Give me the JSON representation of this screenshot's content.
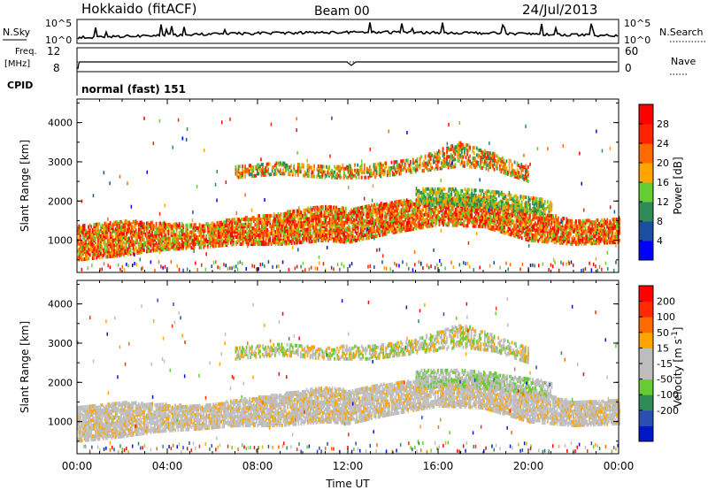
{
  "header": {
    "station": "Hokkaido (fitACF)",
    "beam": "Beam 00",
    "date": "24/Jul/2013"
  },
  "summary_panels": {
    "sky_label": "N.Sky",
    "search_label": "N.Search",
    "sky_ticks": [
      "10^5",
      "10^0"
    ],
    "search_ticks": [
      "10^5",
      "10^0"
    ],
    "freq_label_1": "Freq.",
    "freq_label_2": "[MHz]",
    "freq_ticks": [
      "12",
      "8"
    ],
    "nave_label": "Nave",
    "nave_ticks": [
      "60",
      "0"
    ],
    "cpid_label": "CPID",
    "cpid_value": "normal (fast) 151"
  },
  "colors": {
    "power_scale": [
      "#0000ff",
      "#1a4fa0",
      "#2e8b57",
      "#66cc33",
      "#ffa500",
      "#ff6a00",
      "#ff2200",
      "#ff0000"
    ],
    "velocity_scale": [
      "#0018c8",
      "#2a4fb0",
      "#2e8b57",
      "#66cc33",
      "#bdbdbd",
      "#bdbdbd",
      "#ffa500",
      "#ff6a00",
      "#ff2a00",
      "#ff0000"
    ],
    "ground_scatter": "#bdbdbd"
  },
  "chart_data": [
    {
      "type": "heatmap",
      "name": "Power",
      "xlabel": "",
      "ylabel": "Slant Range [km]",
      "xlim": [
        0,
        24
      ],
      "ylim": [
        180,
        4600
      ],
      "yticks": [
        "4000",
        "3000",
        "2000",
        "1000"
      ],
      "colorbar_label": "Power [dB]",
      "colorbar_ticks": [
        "28",
        "24",
        "20",
        "16",
        "12",
        "8",
        "4"
      ],
      "colorbar_range": [
        0,
        32
      ],
      "bands": [
        {
          "t": [
            0,
            2,
            3.5,
            5.5,
            7,
            9,
            11,
            12,
            14,
            16,
            18,
            20,
            22,
            24
          ],
          "lo": [
            500,
            620,
            750,
            820,
            900,
            900,
            1000,
            950,
            1200,
            1400,
            1350,
            1000,
            900,
            950
          ],
          "hi": [
            1400,
            1500,
            1450,
            1400,
            1550,
            1700,
            1900,
            1800,
            2000,
            2100,
            2100,
            1800,
            1500,
            1550
          ],
          "colors": [
            "#ff0000",
            "#ff3300",
            "#ff6600",
            "#ffa500",
            "#66cc33"
          ],
          "density": 0.65
        },
        {
          "t": [
            7,
            9,
            11,
            13,
            15,
            17,
            18.5,
            20
          ],
          "lo": [
            2600,
            2700,
            2600,
            2600,
            2750,
            2900,
            2800,
            2500
          ],
          "hi": [
            2900,
            3000,
            2900,
            2950,
            3100,
            3500,
            3200,
            2900
          ],
          "colors": [
            "#ff6a00",
            "#ffa500",
            "#66cc33",
            "#2e8b57",
            "#ff2200"
          ],
          "density": 0.45
        },
        {
          "t": [
            15,
            17,
            19,
            21
          ],
          "lo": [
            1900,
            1900,
            1800,
            1650
          ],
          "hi": [
            2300,
            2350,
            2200,
            2000
          ],
          "colors": [
            "#66cc33",
            "#2e8b57",
            "#ffa500"
          ],
          "density": 0.5
        }
      ]
    },
    {
      "type": "heatmap",
      "name": "Velocity",
      "xlabel": "Time UT",
      "ylabel": "Slant Range [km]",
      "xlim": [
        0,
        24
      ],
      "ylim": [
        180,
        4600
      ],
      "xticks": [
        "00:00",
        "04:00",
        "08:00",
        "12:00",
        "16:00",
        "20:00",
        "00:00"
      ],
      "yticks": [
        "4000",
        "3000",
        "2000",
        "1000"
      ],
      "colorbar_label": "Velocity [m s^-1]",
      "colorbar_ticks": [
        "200",
        "100",
        "50",
        "15",
        "-15",
        "-50",
        "-100",
        "-200"
      ],
      "colorbar_range": [
        -250,
        250
      ],
      "bands": [
        {
          "t": [
            0,
            2,
            3.5,
            5.5,
            7,
            9,
            11,
            12,
            14,
            16,
            18,
            20,
            22,
            24
          ],
          "lo": [
            500,
            620,
            750,
            820,
            900,
            900,
            1000,
            950,
            1200,
            1400,
            1350,
            1000,
            900,
            950
          ],
          "hi": [
            1400,
            1500,
            1450,
            1400,
            1550,
            1700,
            1900,
            1800,
            2000,
            2100,
            2100,
            1800,
            1500,
            1550
          ],
          "colors": [
            "#bdbdbd",
            "#bdbdbd",
            "#bdbdbd",
            "#ffa500",
            "#c8c8c8"
          ],
          "density": 0.7
        },
        {
          "t": [
            7,
            9,
            11,
            13,
            15,
            17,
            18.5,
            20
          ],
          "lo": [
            2600,
            2700,
            2600,
            2600,
            2750,
            2900,
            2800,
            2500
          ],
          "hi": [
            2900,
            3000,
            2900,
            2950,
            3100,
            3500,
            3200,
            2900
          ],
          "colors": [
            "#bdbdbd",
            "#ffa500",
            "#bdbdbd",
            "#66cc33"
          ],
          "density": 0.45
        },
        {
          "t": [
            15,
            17,
            19,
            21
          ],
          "lo": [
            1900,
            1900,
            1800,
            1650
          ],
          "hi": [
            2300,
            2350,
            2200,
            2000
          ],
          "colors": [
            "#bdbdbd",
            "#66cc33",
            "#bdbdbd"
          ],
          "density": 0.5
        }
      ]
    }
  ]
}
